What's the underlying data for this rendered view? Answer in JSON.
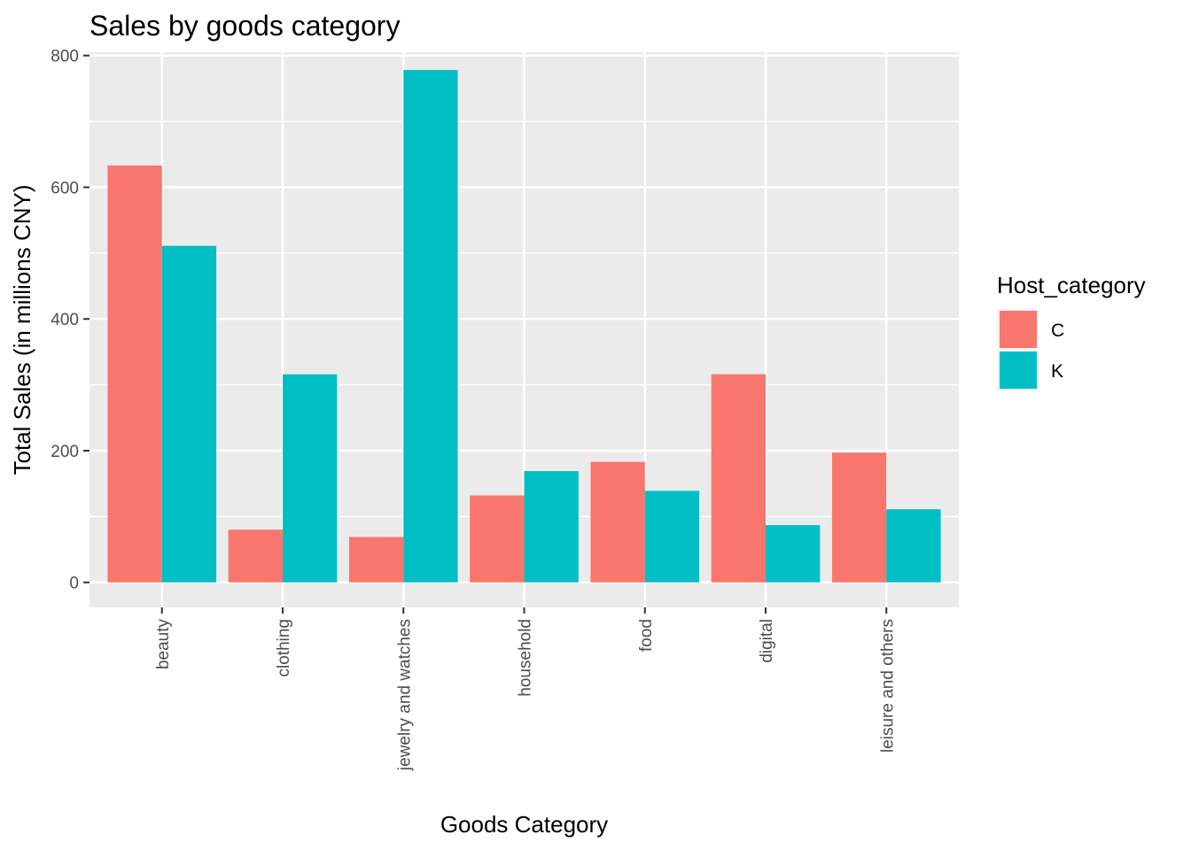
{
  "chart_data": {
    "type": "bar",
    "title": "Sales by goods category",
    "xlabel": "Goods Category",
    "ylabel": "Total Sales (in millions CNY)",
    "categories": [
      "beauty",
      "clothing",
      "jewelry and watches",
      "household",
      "food",
      "digital",
      "leisure and others"
    ],
    "series": [
      {
        "name": "C",
        "color": "#F8766D",
        "values": [
          633,
          80,
          69,
          132,
          183,
          316,
          197
        ]
      },
      {
        "name": "K",
        "color": "#00BFC4",
        "values": [
          511,
          316,
          778,
          169,
          139,
          87,
          111
        ]
      }
    ],
    "ylim": [
      -38,
      805
    ],
    "yticks": [
      0,
      200,
      400,
      600,
      800
    ],
    "grid": true,
    "panel_background": "#EBEBEB",
    "legend": {
      "title": "Host_category",
      "position": "right"
    }
  }
}
